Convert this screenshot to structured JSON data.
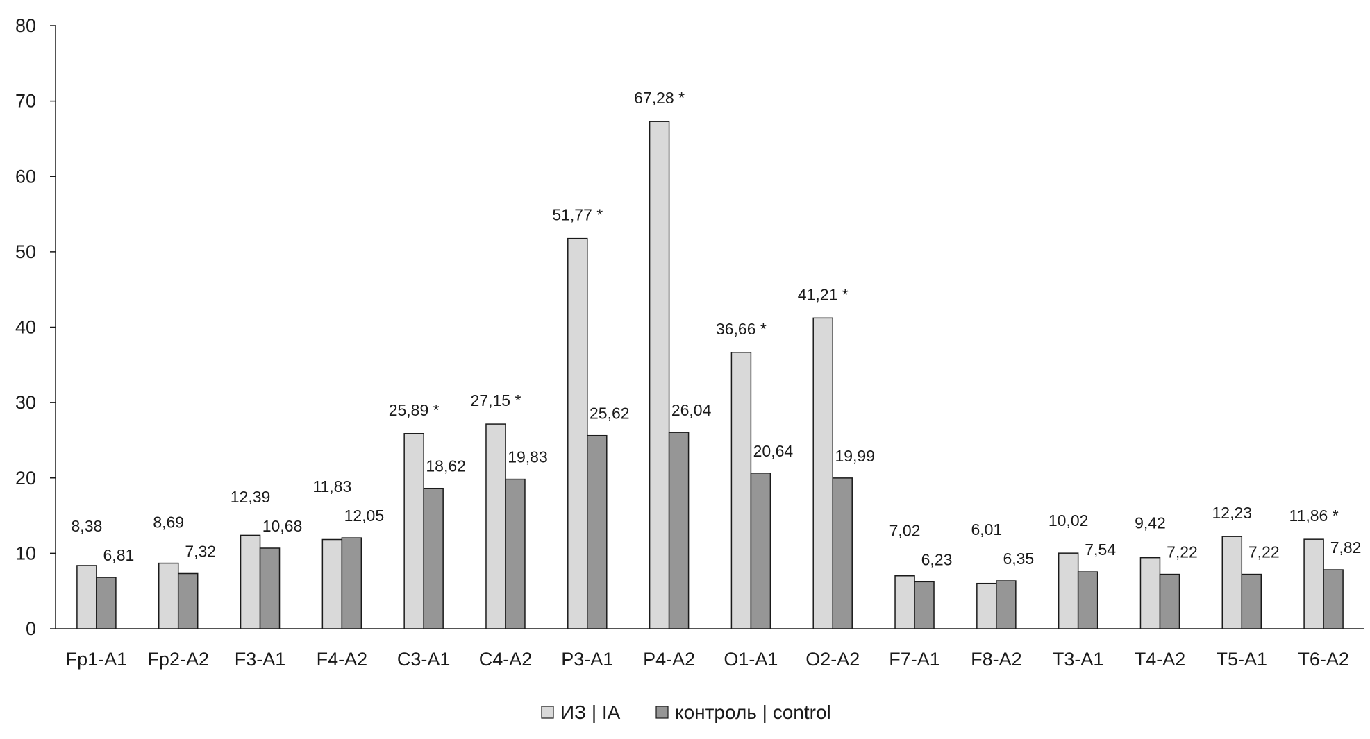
{
  "chart_data": {
    "type": "bar",
    "title": "",
    "xlabel": "",
    "ylabel": "",
    "ylim": [
      0,
      80
    ],
    "yticks": [
      0,
      10,
      20,
      30,
      40,
      50,
      60,
      70,
      80
    ],
    "grid": false,
    "legend_position": "bottom",
    "categories": [
      "Fp1-A1",
      "Fp2-A2",
      "F3-A1",
      "F4-A2",
      "C3-A1",
      "C4-A2",
      "P3-A1",
      "P4-A2",
      "O1-A1",
      "O2-A2",
      "F7-A1",
      "F8-A2",
      "T3-A1",
      "T4-A2",
      "T5-A1",
      "T6-A2"
    ],
    "series": [
      {
        "name": "ИЗ | IA",
        "color": "#d9d9d9",
        "values": [
          8.38,
          8.69,
          12.39,
          11.83,
          25.89,
          27.15,
          51.77,
          67.28,
          36.66,
          41.21,
          7.02,
          6.01,
          10.02,
          9.42,
          12.23,
          11.86
        ],
        "labels": [
          "8,38",
          "8,69",
          "12,39",
          "11,83",
          "25,89 *",
          "27,15 *",
          "51,77 *",
          "67,28 *",
          "36,66 *",
          "41,21 *",
          "7,02",
          "6,01",
          "10,02",
          "9,42",
          "12,23",
          "11,86 *"
        ]
      },
      {
        "name": "контроль | control",
        "color": "#969696",
        "values": [
          6.81,
          7.32,
          10.68,
          12.05,
          18.62,
          19.83,
          25.62,
          26.04,
          20.64,
          19.99,
          6.23,
          6.35,
          7.54,
          7.22,
          7.22,
          7.82
        ],
        "labels": [
          "6,81",
          "7,32",
          "10,68",
          "12,05",
          "18,62",
          "19,83",
          "25,62",
          "26,04",
          "20,64",
          "19,99",
          "6,23",
          "6,35",
          "7,54",
          "7,22",
          "7,22",
          "7,82"
        ]
      }
    ]
  }
}
